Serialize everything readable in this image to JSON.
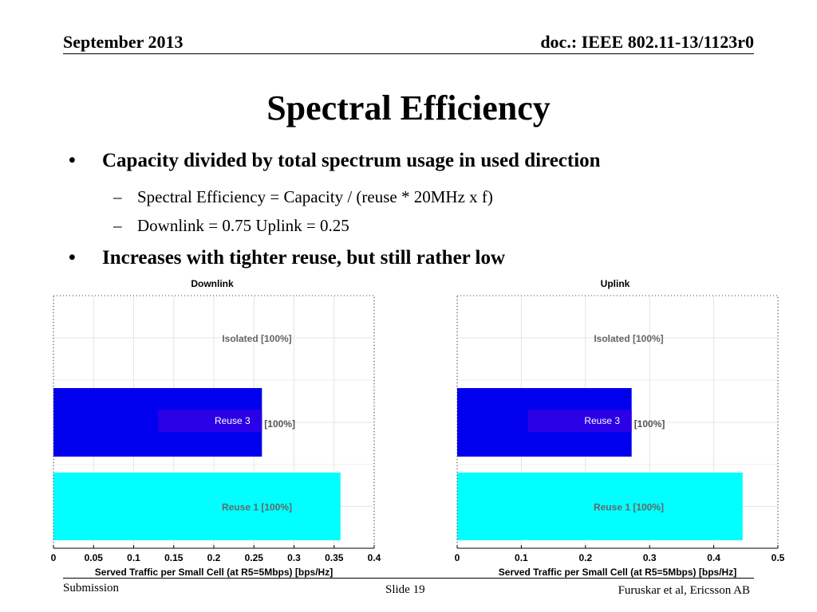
{
  "header": {
    "date": "September 2013",
    "doc": "doc.: IEEE 802.11-13/1123r0"
  },
  "title": "Spectral Efficiency",
  "bullets": [
    {
      "text": "Capacity divided by total spectrum usage in used direction",
      "sub": [
        "Spectral Efficiency = Capacity / (reuse * 20MHz x f)",
        "Downlink = 0.75  Uplink = 0.25"
      ]
    },
    {
      "text": "Increases with tighter reuse, but still rather low",
      "sub": []
    }
  ],
  "footer": {
    "left": "Submission",
    "center": "Slide 19",
    "right": "Furuskar et al, Ericsson AB"
  },
  "colors": {
    "reuse3": "#0000ee",
    "reuse3_inner": "#2a00e6",
    "reuse1": "#00ffff"
  },
  "chart_data": [
    {
      "type": "bar",
      "orientation": "horizontal",
      "title": "Downlink",
      "xlabel": "Served Traffic per Small Cell (at R5=5Mbps) [bps/Hz]",
      "xlim": [
        0,
        0.4
      ],
      "xticks": [
        0,
        0.05,
        0.1,
        0.15,
        0.2,
        0.25,
        0.3,
        0.35,
        0.4
      ],
      "xtick_labels": [
        "0",
        "0.05",
        "0.1",
        "0.15",
        "0.2",
        "0.25",
        "0.3",
        "0.35",
        "0.4"
      ],
      "grid": true,
      "bars": [
        {
          "label": "Isolated [100%]",
          "value": 0,
          "color": ""
        },
        {
          "label": "Reuse 3",
          "label_suffix": "[100%]",
          "value": 0.26,
          "color": "#0000ee"
        },
        {
          "label": "Reuse 1 [100%]",
          "value": 0.358,
          "color": "#00ffff"
        }
      ]
    },
    {
      "type": "bar",
      "orientation": "horizontal",
      "title": "Uplink",
      "xlabel": "Served Traffic per Small Cell (at R5=5Mbps) [bps/Hz]",
      "xlim": [
        0,
        0.5
      ],
      "xticks": [
        0,
        0.1,
        0.2,
        0.3,
        0.4,
        0.5
      ],
      "xtick_labels": [
        "0",
        "0.1",
        "0.2",
        "0.3",
        "0.4",
        "0.5"
      ],
      "grid": true,
      "bars": [
        {
          "label": "Isolated [100%]",
          "value": 0,
          "color": ""
        },
        {
          "label": "Reuse 3",
          "label_suffix": "[100%]",
          "value": 0.272,
          "color": "#0000ee"
        },
        {
          "label": "Reuse 1 [100%]",
          "value": 0.445,
          "color": "#00ffff"
        }
      ]
    }
  ]
}
